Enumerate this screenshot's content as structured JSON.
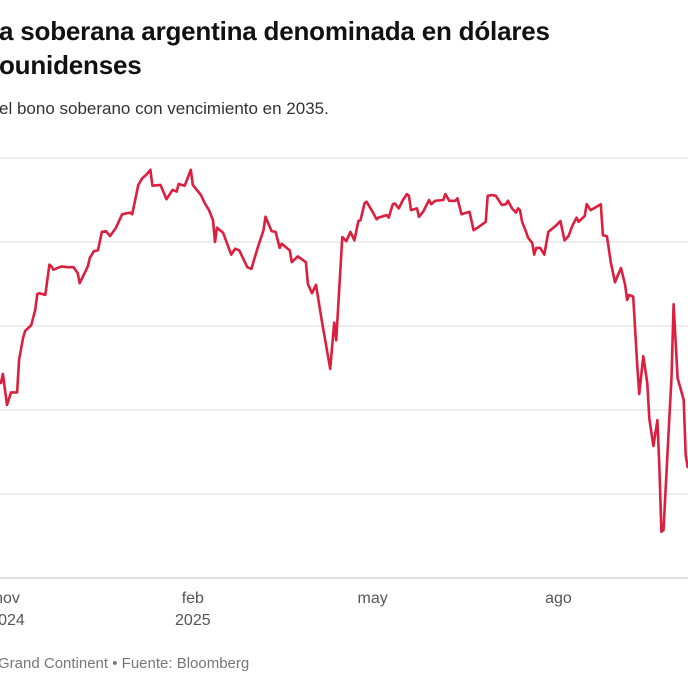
{
  "header": {
    "title_line1": "a soberana argentina denominada en dólares",
    "title_line2": "ounidenses",
    "subtitle": "el bono soberano con vencimiento en 2035."
  },
  "footer": {
    "credit": "Grand Continent • Fuente: Bloomberg"
  },
  "colors": {
    "line": "#dc1f3e",
    "grid": "#e2e2e2",
    "baseline": "#cccccc"
  },
  "chart_data": {
    "type": "line",
    "title": "",
    "xlabel": "",
    "ylabel": "",
    "grid": true,
    "y_tick_labels_visible": false,
    "xlim": [
      "2024-10-27",
      "2025-10-02"
    ],
    "ylim": [
      0,
      5
    ],
    "x_ticks": [
      {
        "date": "2024-11-01",
        "label": "nov",
        "sublabel": "2024"
      },
      {
        "date": "2025-02-01",
        "label": "feb",
        "sublabel": "2025"
      },
      {
        "date": "2025-05-01",
        "label": "may",
        "sublabel": ""
      },
      {
        "date": "2025-08-01",
        "label": "ago",
        "sublabel": ""
      }
    ],
    "series": [
      {
        "points": [
          [
            "2024-10-27",
            2.32
          ],
          [
            "2024-10-28",
            2.43
          ],
          [
            "2024-10-30",
            2.06
          ],
          [
            "2024-11-01",
            2.21
          ],
          [
            "2024-11-04",
            2.21
          ],
          [
            "2024-11-05",
            2.6
          ],
          [
            "2024-11-07",
            2.86
          ],
          [
            "2024-11-08",
            2.94
          ],
          [
            "2024-11-11",
            3.01
          ],
          [
            "2024-11-13",
            3.19
          ],
          [
            "2024-11-14",
            3.38
          ],
          [
            "2024-11-15",
            3.39
          ],
          [
            "2024-11-18",
            3.37
          ],
          [
            "2024-11-20",
            3.73
          ],
          [
            "2024-11-21",
            3.71
          ],
          [
            "2024-11-22",
            3.67
          ],
          [
            "2024-11-25",
            3.7
          ],
          [
            "2024-11-26",
            3.71
          ],
          [
            "2024-11-29",
            3.7
          ],
          [
            "2024-12-02",
            3.7
          ],
          [
            "2024-12-04",
            3.63
          ],
          [
            "2024-12-05",
            3.51
          ],
          [
            "2024-12-09",
            3.71
          ],
          [
            "2024-12-10",
            3.81
          ],
          [
            "2024-12-12",
            3.89
          ],
          [
            "2024-12-14",
            3.9
          ],
          [
            "2024-12-16",
            4.12
          ],
          [
            "2024-12-18",
            4.13
          ],
          [
            "2024-12-20",
            4.07
          ],
          [
            "2024-12-23",
            4.17
          ],
          [
            "2024-12-26",
            4.33
          ],
          [
            "2024-12-30",
            4.35
          ],
          [
            "2024-12-31",
            4.33
          ],
          [
            "2025-01-03",
            4.68
          ],
          [
            "2025-01-05",
            4.76
          ],
          [
            "2025-01-07",
            4.8
          ],
          [
            "2025-01-09",
            4.86
          ],
          [
            "2025-01-10",
            4.67
          ],
          [
            "2025-01-14",
            4.68
          ],
          [
            "2025-01-17",
            4.51
          ],
          [
            "2025-01-20",
            4.62
          ],
          [
            "2025-01-22",
            4.6
          ],
          [
            "2025-01-23",
            4.69
          ],
          [
            "2025-01-26",
            4.67
          ],
          [
            "2025-01-29",
            4.86
          ],
          [
            "2025-01-30",
            4.68
          ],
          [
            "2025-02-03",
            4.56
          ],
          [
            "2025-02-05",
            4.46
          ],
          [
            "2025-02-07",
            4.38
          ],
          [
            "2025-02-09",
            4.26
          ],
          [
            "2025-02-10",
            4.0
          ],
          [
            "2025-02-11",
            4.17
          ],
          [
            "2025-02-14",
            4.11
          ],
          [
            "2025-02-18",
            3.85
          ],
          [
            "2025-02-20",
            3.92
          ],
          [
            "2025-02-22",
            3.9
          ],
          [
            "2025-02-26",
            3.7
          ],
          [
            "2025-02-28",
            3.68
          ],
          [
            "2025-03-03",
            3.92
          ],
          [
            "2025-03-06",
            4.14
          ],
          [
            "2025-03-07",
            4.3
          ],
          [
            "2025-03-10",
            4.13
          ],
          [
            "2025-03-12",
            4.12
          ],
          [
            "2025-03-14",
            3.93
          ],
          [
            "2025-03-15",
            3.98
          ],
          [
            "2025-03-19",
            3.9
          ],
          [
            "2025-03-20",
            3.76
          ],
          [
            "2025-03-23",
            3.83
          ],
          [
            "2025-03-27",
            3.76
          ],
          [
            "2025-03-28",
            3.5
          ],
          [
            "2025-03-30",
            3.39
          ],
          [
            "2025-04-01",
            3.49
          ],
          [
            "2025-04-04",
            3.04
          ],
          [
            "2025-04-08",
            2.49
          ],
          [
            "2025-04-10",
            3.04
          ],
          [
            "2025-04-11",
            2.83
          ],
          [
            "2025-04-14",
            4.06
          ],
          [
            "2025-04-16",
            4.01
          ],
          [
            "2025-04-18",
            4.12
          ],
          [
            "2025-04-20",
            4.02
          ],
          [
            "2025-04-22",
            4.25
          ],
          [
            "2025-04-23",
            4.26
          ],
          [
            "2025-04-25",
            4.46
          ],
          [
            "2025-04-26",
            4.48
          ],
          [
            "2025-04-29",
            4.36
          ],
          [
            "2025-05-01",
            4.27
          ],
          [
            "2025-05-02",
            4.29
          ],
          [
            "2025-05-06",
            4.32
          ],
          [
            "2025-05-07",
            4.29
          ],
          [
            "2025-05-09",
            4.45
          ],
          [
            "2025-05-10",
            4.46
          ],
          [
            "2025-05-12",
            4.4
          ],
          [
            "2025-05-14",
            4.5
          ],
          [
            "2025-05-16",
            4.57
          ],
          [
            "2025-05-17",
            4.55
          ],
          [
            "2025-05-18",
            4.38
          ],
          [
            "2025-05-21",
            4.4
          ],
          [
            "2025-05-22",
            4.3
          ],
          [
            "2025-05-24",
            4.36
          ],
          [
            "2025-05-27",
            4.5
          ],
          [
            "2025-05-28",
            4.45
          ],
          [
            "2025-05-30",
            4.49
          ],
          [
            "2025-06-03",
            4.5
          ],
          [
            "2025-06-04",
            4.57
          ],
          [
            "2025-06-06",
            4.49
          ],
          [
            "2025-06-09",
            4.49
          ],
          [
            "2025-06-10",
            4.52
          ],
          [
            "2025-06-12",
            4.33
          ],
          [
            "2025-06-16",
            4.36
          ],
          [
            "2025-06-18",
            4.14
          ],
          [
            "2025-06-20",
            4.17
          ],
          [
            "2025-06-24",
            4.24
          ],
          [
            "2025-06-25",
            4.55
          ],
          [
            "2025-06-27",
            4.56
          ],
          [
            "2025-06-29",
            4.55
          ],
          [
            "2025-07-02",
            4.44
          ],
          [
            "2025-07-04",
            4.45
          ],
          [
            "2025-07-05",
            4.49
          ],
          [
            "2025-07-07",
            4.4
          ],
          [
            "2025-07-09",
            4.35
          ],
          [
            "2025-07-10",
            4.4
          ],
          [
            "2025-07-11",
            4.38
          ],
          [
            "2025-07-12",
            4.24
          ],
          [
            "2025-07-14",
            4.12
          ],
          [
            "2025-07-15",
            4.05
          ],
          [
            "2025-07-17",
            3.99
          ],
          [
            "2025-07-18",
            3.85
          ],
          [
            "2025-07-19",
            3.93
          ],
          [
            "2025-07-21",
            3.93
          ],
          [
            "2025-07-23",
            3.85
          ],
          [
            "2025-07-25",
            4.12
          ],
          [
            "2025-07-29",
            4.2
          ],
          [
            "2025-07-31",
            4.25
          ],
          [
            "2025-08-02",
            4.02
          ],
          [
            "2025-08-04",
            4.07
          ],
          [
            "2025-08-06",
            4.2
          ],
          [
            "2025-08-08",
            4.29
          ],
          [
            "2025-08-09",
            4.24
          ],
          [
            "2025-08-12",
            4.31
          ],
          [
            "2025-08-13",
            4.45
          ],
          [
            "2025-08-15",
            4.38
          ],
          [
            "2025-08-20",
            4.45
          ],
          [
            "2025-08-21",
            4.08
          ],
          [
            "2025-08-23",
            4.07
          ],
          [
            "2025-08-25",
            3.75
          ],
          [
            "2025-08-27",
            3.52
          ],
          [
            "2025-08-28",
            3.58
          ],
          [
            "2025-08-30",
            3.69
          ],
          [
            "2025-09-01",
            3.49
          ],
          [
            "2025-09-02",
            3.31
          ],
          [
            "2025-09-03",
            3.37
          ],
          [
            "2025-09-05",
            3.35
          ],
          [
            "2025-09-07",
            2.54
          ],
          [
            "2025-09-08",
            2.19
          ],
          [
            "2025-09-10",
            2.64
          ],
          [
            "2025-09-12",
            2.32
          ],
          [
            "2025-09-13",
            1.9
          ],
          [
            "2025-09-15",
            1.57
          ],
          [
            "2025-09-17",
            1.88
          ],
          [
            "2025-09-18",
            1.31
          ],
          [
            "2025-09-19",
            0.55
          ],
          [
            "2025-09-20",
            0.57
          ],
          [
            "2025-09-23",
            1.94
          ],
          [
            "2025-09-24",
            2.38
          ],
          [
            "2025-09-25",
            3.26
          ],
          [
            "2025-09-27",
            2.38
          ],
          [
            "2025-09-30",
            2.12
          ],
          [
            "2025-10-01",
            1.46
          ],
          [
            "2025-10-02",
            1.32
          ]
        ]
      }
    ]
  }
}
